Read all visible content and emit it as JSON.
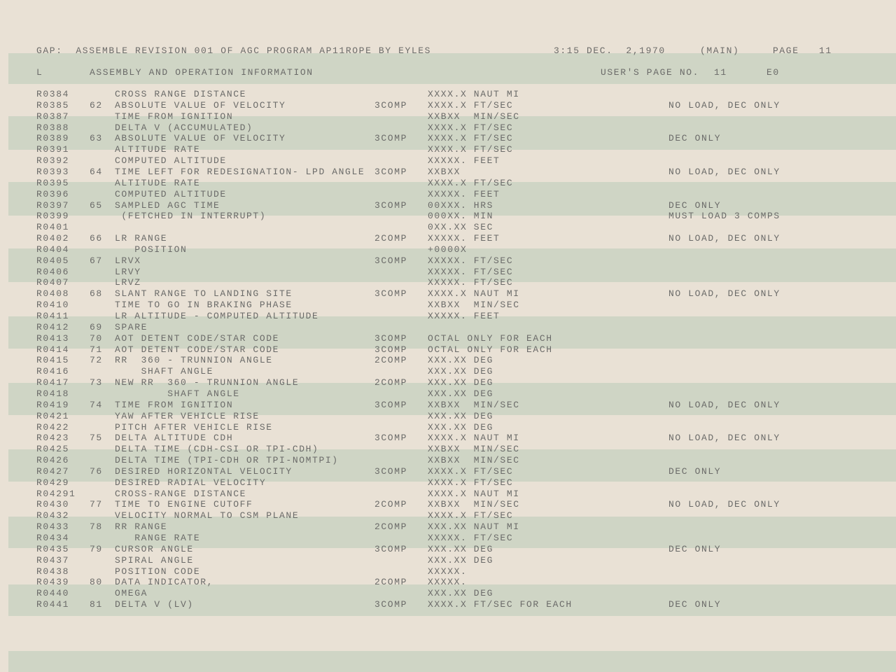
{
  "header": {
    "title": "GAP:  ASSEMBLE REVISION 001 OF AGC PROGRAM AP11ROPE BY EYLES",
    "datetime": "3:15 DEC.  2,1970",
    "section": "(MAIN)",
    "page_label": "PAGE",
    "page_number": "11",
    "col_l": "L",
    "subtitle": "ASSEMBLY AND OPERATION INFORMATION",
    "users_page_label": "USER'S PAGE NO.",
    "users_page_number": "11",
    "code": "E0"
  },
  "colors": {
    "paper": "#e9e1d5",
    "green_bar": "#cfd5c5",
    "ink": "#6b6b69"
  },
  "rows": [
    [
      "R0384",
      "",
      "CROSS RANGE DISTANCE",
      "",
      "XXXX.X NAUT MI",
      ""
    ],
    [
      "R0385",
      "62",
      "ABSOLUTE VALUE OF VELOCITY",
      "3COMP",
      "XXXX.X FT/SEC",
      "NO LOAD, DEC ONLY"
    ],
    [
      "R0387",
      "",
      "TIME FROM IGNITION",
      "",
      "XXBXX  MIN/SEC",
      ""
    ],
    [
      "R0388",
      "",
      "DELTA V (ACCUMULATED)",
      "",
      "XXXX.X FT/SEC",
      ""
    ],
    [
      "R0389",
      "63",
      "ABSOLUTE VALUE OF VELOCITY",
      "3COMP",
      "XXXX.X FT/SEC",
      "DEC ONLY"
    ],
    [
      "R0391",
      "",
      "ALTITUDE RATE",
      "",
      "XXXX.X FT/SEC",
      ""
    ],
    [
      "R0392",
      "",
      "COMPUTED ALTITUDE",
      "",
      "XXXXX. FEET",
      ""
    ],
    [
      "R0393",
      "64",
      "TIME LEFT FOR REDESIGNATION- LPD ANGLE",
      "3COMP",
      "XXBXX",
      "NO LOAD, DEC ONLY"
    ],
    [
      "R0395",
      "",
      "ALTITUDE RATE",
      "",
      "XXXX.X FT/SEC",
      ""
    ],
    [
      "R0396",
      "",
      "COMPUTED ALTITUDE",
      "",
      "XXXXX. FEET",
      ""
    ],
    [
      "R0397",
      "65",
      "SAMPLED AGC TIME",
      "3COMP",
      "00XXX. HRS",
      "DEC ONLY"
    ],
    [
      "R0399",
      "",
      " (FETCHED IN INTERRUPT)",
      "",
      "000XX. MIN",
      "MUST LOAD 3 COMPS"
    ],
    [
      "R0401",
      "",
      "",
      "",
      "0XX.XX SEC",
      ""
    ],
    [
      "R0402",
      "66",
      "LR RANGE",
      "2COMP",
      "XXXXX. FEET",
      "NO LOAD, DEC ONLY"
    ],
    [
      "R0404",
      "",
      "   POSITION",
      "",
      "+0000X",
      ""
    ],
    [
      "R0405",
      "67",
      "LRVX",
      "3COMP",
      "XXXXX. FT/SEC",
      ""
    ],
    [
      "R0406",
      "",
      "LRVY",
      "",
      "XXXXX. FT/SEC",
      ""
    ],
    [
      "R0407",
      "",
      "LRVZ",
      "",
      "XXXXX. FT/SEC",
      ""
    ],
    [
      "R0408",
      "68",
      "SLANT RANGE TO LANDING SITE",
      "3COMP",
      "XXXX.X NAUT MI",
      "NO LOAD, DEC ONLY"
    ],
    [
      "R0410",
      "",
      "TIME TO GO IN BRAKING PHASE",
      "",
      "XXBXX  MIN/SEC",
      ""
    ],
    [
      "R0411",
      "",
      "LR ALTITUDE - COMPUTED ALTITUDE",
      "",
      "XXXXX. FEET",
      ""
    ],
    [
      "R0412",
      "69",
      "SPARE",
      "",
      "",
      ""
    ],
    [
      "R0413",
      "70",
      "AOT DETENT CODE/STAR CODE",
      "3COMP",
      "OCTAL ONLY FOR EACH",
      ""
    ],
    [
      "R0414",
      "71",
      "AOT DETENT CODE/STAR CODE",
      "3COMP",
      "OCTAL ONLY FOR EACH",
      ""
    ],
    [
      "R0415",
      "72",
      "RR  360 - TRUNNION ANGLE",
      "2COMP",
      "XXX.XX DEG",
      ""
    ],
    [
      "R0416",
      "",
      "    SHAFT ANGLE",
      "",
      "XXX.XX DEG",
      ""
    ],
    [
      "R0417",
      "73",
      "NEW RR  360 - TRUNNION ANGLE",
      "2COMP",
      "XXX.XX DEG",
      ""
    ],
    [
      "R0418",
      "",
      "        SHAFT ANGLE",
      "",
      "XXX.XX DEG",
      ""
    ],
    [
      "R0419",
      "74",
      "TIME FROM IGNITION",
      "3COMP",
      "XXBXX  MIN/SEC",
      "NO LOAD, DEC ONLY"
    ],
    [
      "R0421",
      "",
      "YAW AFTER VEHICLE RISE",
      "",
      "XXX.XX DEG",
      ""
    ],
    [
      "R0422",
      "",
      "PITCH AFTER VEHICLE RISE",
      "",
      "XXX.XX DEG",
      ""
    ],
    [
      "R0423",
      "75",
      "DELTA ALTITUDE CDH",
      "3COMP",
      "XXXX.X NAUT MI",
      "NO LOAD, DEC ONLY"
    ],
    [
      "R0425",
      "",
      "DELTA TIME (CDH-CSI OR TPI-CDH)",
      "",
      "XXBXX  MIN/SEC",
      ""
    ],
    [
      "R0426",
      "",
      "DELTA TIME (TPI-CDH OR TPI-NOMTPI)",
      "",
      "XXBXX  MIN/SEC",
      ""
    ],
    [
      "R0427",
      "76",
      "DESIRED HORIZONTAL VELOCITY",
      "3COMP",
      "XXXX.X FT/SEC",
      "DEC ONLY"
    ],
    [
      "R0429",
      "",
      "DESIRED RADIAL VELOCITY",
      "",
      "XXXX.X FT/SEC",
      ""
    ],
    [
      "R04291",
      "",
      "CROSS-RANGE DISTANCE",
      "",
      "XXXX.X NAUT MI",
      ""
    ],
    [
      "R0430",
      "77",
      "TIME TO ENGINE CUTOFF",
      "2COMP",
      "XXBXX  MIN/SEC",
      "NO LOAD, DEC ONLY"
    ],
    [
      "R0432",
      "",
      "VELOCITY NORMAL TO CSM PLANE",
      "",
      "XXXX.X FT/SEC",
      ""
    ],
    [
      "R0433",
      "78",
      "RR RANGE",
      "2COMP",
      "XXX.XX NAUT MI",
      ""
    ],
    [
      "R0434",
      "",
      "   RANGE RATE",
      "",
      "XXXXX. FT/SEC",
      ""
    ],
    [
      "R0435",
      "79",
      "CURSOR ANGLE",
      "3COMP",
      "XXX.XX DEG",
      "DEC ONLY"
    ],
    [
      "R0437",
      "",
      "SPIRAL ANGLE",
      "",
      "XXX.XX DEG",
      ""
    ],
    [
      "R0438",
      "",
      "POSITION CODE",
      "",
      "XXXXX.",
      ""
    ],
    [
      "R0439",
      "80",
      "DATA INDICATOR,",
      "2COMP",
      "XXXXX.",
      ""
    ],
    [
      "R0440",
      "",
      "OMEGA",
      "",
      "XXX.XX DEG",
      ""
    ],
    [
      "R0441",
      "81",
      "DELTA V (LV)",
      "3COMP",
      "XXXX.X FT/SEC FOR EACH",
      "DEC ONLY"
    ]
  ]
}
